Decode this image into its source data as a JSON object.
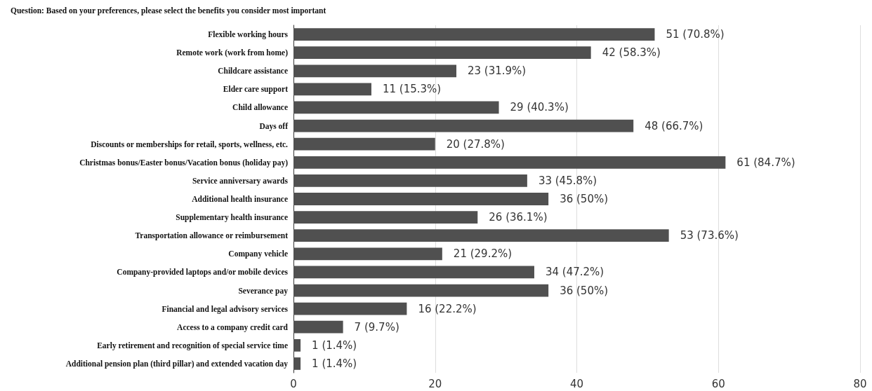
{
  "chart_data": {
    "type": "bar",
    "orientation": "horizontal",
    "title": "Question: Based on your preferences, please select the benefits you consider most important",
    "categories": [
      "Flexible working hours",
      "Remote work (work from home)",
      "Childcare assistance",
      "Elder care support",
      "Child allowance",
      "Days off",
      "Discounts or memberships for retail, sports, wellness, etc.",
      "Christmas bonus/Easter bonus/Vacation bonus (holiday pay)",
      "Service anniversary awards",
      "Additional health insurance",
      "Supplementary health insurance",
      "Transportation allowance or reimbursement",
      "Company vehicle",
      "Company-provided laptops and/or mobile devices",
      "Severance pay",
      "Financial and legal advisory services",
      "Access to a company credit card",
      "Early retirement and recognition of special service time",
      "Additional pension plan (third pillar) and extended vacation day"
    ],
    "values": [
      51,
      42,
      23,
      11,
      29,
      48,
      20,
      61,
      33,
      36,
      26,
      53,
      21,
      34,
      36,
      16,
      7,
      1,
      1
    ],
    "value_labels": [
      "51 (70.8%)",
      "42 (58.3%)",
      "23 (31.9%)",
      "11 (15.3%)",
      "29 (40.3%)",
      "48 (66.7%)",
      "20 (27.8%)",
      "61 (84.7%)",
      "33 (45.8%)",
      "36 (50%)",
      "26 (36.1%)",
      "53 (73.6%)",
      "21 (29.2%)",
      "34 (47.2%)",
      "36 (50%)",
      "16 (22.2%)",
      "7 (9.7%)",
      "1 (1.4%)",
      "1 (1.4%)"
    ],
    "color": "#505050",
    "xlim": [
      0,
      80
    ],
    "xticks": [
      0,
      20,
      40,
      60,
      80
    ],
    "grid": "x"
  }
}
